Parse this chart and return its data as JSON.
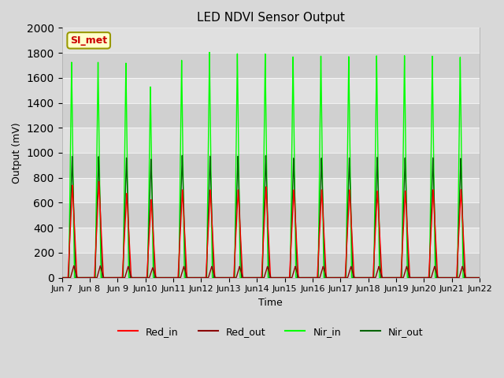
{
  "title": "LED NDVI Sensor Output",
  "xlabel": "Time",
  "ylabel": "Output (mV)",
  "ylim": [
    0,
    2000
  ],
  "xlim_days": [
    7,
    22
  ],
  "x_ticks_labels": [
    "Jun 7",
    "Jun 8",
    "Jun 9",
    "Jun 10",
    "Jun 11",
    "Jun 12",
    "Jun 13",
    "Jun 14",
    "Jun 15",
    "Jun 16",
    "Jun 17",
    "Jun 18",
    "Jun 19",
    "Jun 20",
    "Jun 21",
    "Jun 22"
  ],
  "x_ticks_positions": [
    7,
    8,
    9,
    10,
    11,
    12,
    13,
    14,
    15,
    16,
    17,
    18,
    19,
    20,
    21,
    22
  ],
  "background_color": "#d8d8d8",
  "plot_bg_color": "#e0e0e0",
  "grid_colors": [
    "#cccccc",
    "#d8d8d8"
  ],
  "annotation_text": "SI_met",
  "annotation_box_color": "#ffffcc",
  "annotation_text_color": "#cc0000",
  "annotation_border_color": "#999900",
  "colors": {
    "Red_in": "#ff0000",
    "Red_out": "#8b0000",
    "Nir_in": "#00ff00",
    "Nir_out": "#006400"
  },
  "line_width": 1.0,
  "peak_data": [
    {
      "day": 7.35,
      "red_in": 740,
      "nir_in": 1725,
      "nir_out": 970,
      "red_out": 95
    },
    {
      "day": 7.65,
      "red_in": 0,
      "nir_in": 0,
      "nir_out": 0,
      "red_out": 0
    },
    {
      "day": 8.3,
      "red_in": 770,
      "nir_in": 1725,
      "nir_out": 970,
      "red_out": 95
    },
    {
      "day": 8.65,
      "red_in": 0,
      "nir_in": 0,
      "nir_out": 0,
      "red_out": 0
    },
    {
      "day": 9.3,
      "red_in": 675,
      "nir_in": 1720,
      "nir_out": 960,
      "red_out": 90
    },
    {
      "day": 9.65,
      "red_in": 0,
      "nir_in": 0,
      "nir_out": 0,
      "red_out": 0
    },
    {
      "day": 10.18,
      "red_in": 625,
      "nir_in": 1530,
      "nir_out": 950,
      "red_out": 80
    },
    {
      "day": 10.55,
      "red_in": 0,
      "nir_in": 0,
      "nir_out": 0,
      "red_out": 0
    },
    {
      "day": 11.3,
      "red_in": 705,
      "nir_in": 1745,
      "nir_out": 980,
      "red_out": 90
    },
    {
      "day": 11.65,
      "red_in": 0,
      "nir_in": 0,
      "nir_out": 0,
      "red_out": 0
    },
    {
      "day": 12.3,
      "red_in": 705,
      "nir_in": 1810,
      "nir_out": 975,
      "red_out": 90
    },
    {
      "day": 12.65,
      "red_in": 0,
      "nir_in": 0,
      "nir_out": 0,
      "red_out": 0
    },
    {
      "day": 13.3,
      "red_in": 705,
      "nir_in": 1800,
      "nir_out": 975,
      "red_out": 90
    },
    {
      "day": 13.65,
      "red_in": 0,
      "nir_in": 0,
      "nir_out": 0,
      "red_out": 0
    },
    {
      "day": 14.3,
      "red_in": 730,
      "nir_in": 1800,
      "nir_out": 980,
      "red_out": 90
    },
    {
      "day": 14.65,
      "red_in": 0,
      "nir_in": 0,
      "nir_out": 0,
      "red_out": 0
    },
    {
      "day": 15.3,
      "red_in": 705,
      "nir_in": 1775,
      "nir_out": 960,
      "red_out": 90
    },
    {
      "day": 15.65,
      "red_in": 0,
      "nir_in": 0,
      "nir_out": 0,
      "red_out": 0
    },
    {
      "day": 16.3,
      "red_in": 705,
      "nir_in": 1780,
      "nir_out": 960,
      "red_out": 90
    },
    {
      "day": 16.65,
      "red_in": 0,
      "nir_in": 0,
      "nir_out": 0,
      "red_out": 0
    },
    {
      "day": 17.3,
      "red_in": 705,
      "nir_in": 1775,
      "nir_out": 960,
      "red_out": 90
    },
    {
      "day": 17.65,
      "red_in": 0,
      "nir_in": 0,
      "nir_out": 0,
      "red_out": 0
    },
    {
      "day": 18.3,
      "red_in": 695,
      "nir_in": 1780,
      "nir_out": 965,
      "red_out": 90
    },
    {
      "day": 18.65,
      "red_in": 0,
      "nir_in": 0,
      "nir_out": 0,
      "red_out": 0
    },
    {
      "day": 19.3,
      "red_in": 695,
      "nir_in": 1780,
      "nir_out": 960,
      "red_out": 90
    },
    {
      "day": 19.65,
      "red_in": 0,
      "nir_in": 0,
      "nir_out": 0,
      "red_out": 0
    },
    {
      "day": 20.3,
      "red_in": 705,
      "nir_in": 1775,
      "nir_out": 960,
      "red_out": 90
    },
    {
      "day": 20.65,
      "red_in": 0,
      "nir_in": 0,
      "nir_out": 0,
      "red_out": 0
    },
    {
      "day": 21.3,
      "red_in": 705,
      "nir_in": 1765,
      "nir_out": 955,
      "red_out": 90
    },
    {
      "day": 21.65,
      "red_in": 0,
      "nir_in": 0,
      "nir_out": 0,
      "red_out": 0
    }
  ]
}
